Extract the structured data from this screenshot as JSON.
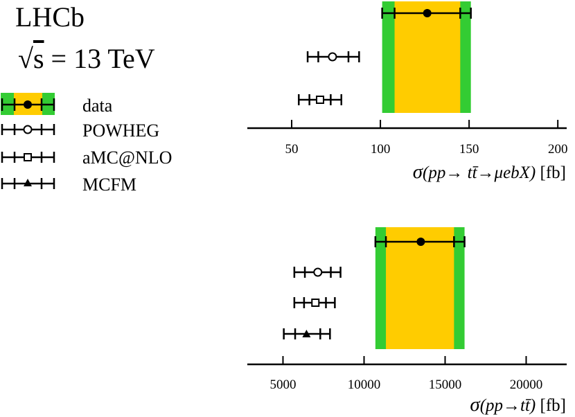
{
  "figure": {
    "experiment": "LHCb",
    "energy_sqrt": "√",
    "energy_s": "s",
    "energy_value": " = 13 TeV"
  },
  "legend": [
    {
      "name": "data",
      "marker": "filled-circle",
      "label": "data"
    },
    {
      "name": "powheg",
      "marker": "open-circle",
      "label": "POWHEG"
    },
    {
      "name": "amcnlo",
      "marker": "open-square",
      "label": "aMC@NLO"
    },
    {
      "name": "mcfm",
      "marker": "filled-triangle",
      "label": "MCFM"
    }
  ],
  "colors": {
    "stat_band": "#FFCC00",
    "total_band": "#33CC33",
    "ink": "#000000"
  },
  "chart_data": [
    {
      "type": "errorbar",
      "name": "fiducial-panel",
      "xlabel_sigma": "σ",
      "xlabel_math": "(pp→ tt̄→μebX)",
      "xlabel_unit": " [fb]",
      "xlim": [
        25,
        205
      ],
      "ticks": [
        50,
        100,
        150,
        200
      ],
      "tick_labels": [
        "50",
        "100",
        "150",
        "200"
      ],
      "band": {
        "central": 126.4,
        "stat": [
          108,
          145
        ],
        "total": [
          101,
          151
        ]
      },
      "points": [
        {
          "series": "data",
          "marker": "filled-circle",
          "value": 126.4,
          "lo": 101,
          "hi": 151,
          "lo_inner": 108,
          "hi_inner": 145
        },
        {
          "series": "POWHEG",
          "marker": "open-circle",
          "value": 73,
          "lo": 59,
          "hi": 88,
          "lo_inner": 65,
          "hi_inner": 82
        },
        {
          "series": "aMC@NLO",
          "marker": "open-square",
          "value": 66,
          "lo": 54,
          "hi": 78,
          "lo_inner": 60,
          "hi_inner": 72
        }
      ]
    },
    {
      "type": "errorbar",
      "name": "inclusive-panel",
      "xlabel_sigma": "σ",
      "xlabel_math": "(pp→tt̄)",
      "xlabel_unit": " [fb]",
      "xlim": [
        2800,
        22500
      ],
      "ticks": [
        5000,
        10000,
        15000,
        20000
      ],
      "tick_labels": [
        "5000",
        "10000",
        "15000",
        "20000"
      ],
      "band": {
        "central": 13500,
        "stat": [
          11350,
          15550
        ],
        "total": [
          10700,
          16200
        ]
      },
      "points": [
        {
          "series": "data",
          "marker": "filled-circle",
          "value": 13500,
          "lo": 10700,
          "hi": 16200,
          "lo_inner": 11350,
          "hi_inner": 15550
        },
        {
          "series": "POWHEG",
          "marker": "open-circle",
          "value": 7150,
          "lo": 5700,
          "hi": 8550,
          "lo_inner": 6350,
          "hi_inner": 7950
        },
        {
          "series": "aMC@NLO",
          "marker": "open-square",
          "value": 7000,
          "lo": 5700,
          "hi": 8200,
          "lo_inner": 6300,
          "hi_inner": 7650
        },
        {
          "series": "MCFM",
          "marker": "filled-triangle",
          "value": 6450,
          "lo": 5050,
          "hi": 7900,
          "lo_inner": 5750,
          "hi_inner": 7300
        }
      ]
    }
  ]
}
